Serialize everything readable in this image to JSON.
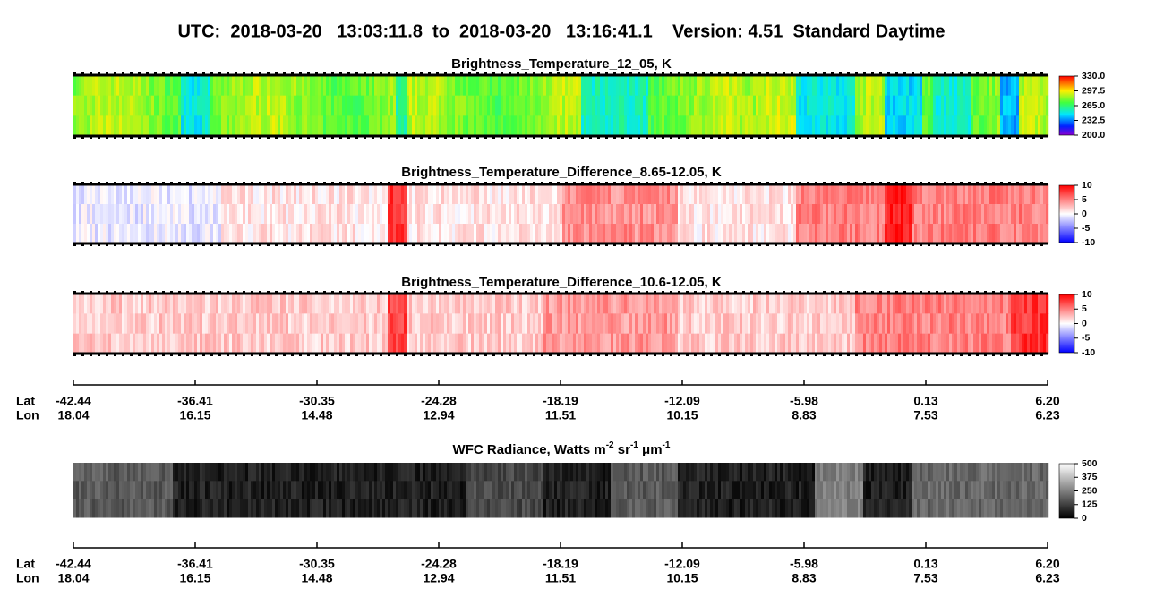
{
  "header": {
    "title": "UTC:  2018-03-20   13:03:11.8  to  2018-03-20   13:16:41.1    Version: 4.51  Standard Daytime"
  },
  "panels": [
    {
      "title": "Brightness_Temperature_12_05, K",
      "range": [
        200,
        330
      ],
      "ticks": [
        {
          "value": 330,
          "label": "330.0"
        },
        {
          "value": 297.5,
          "label": "297.5"
        },
        {
          "value": 265,
          "label": "265.0"
        },
        {
          "value": 232.5,
          "label": "232.5"
        },
        {
          "value": 200,
          "label": "200.0"
        }
      ]
    },
    {
      "title": "Brightness_Temperature_Difference_8.65-12.05, K",
      "range": [
        -10,
        10
      ],
      "ticks": [
        10,
        5,
        0,
        -5,
        -10
      ]
    },
    {
      "title": "Brightness_Temperature_Difference_10.6-12.05, K",
      "range": [
        -10,
        10
      ],
      "ticks": [
        10,
        5,
        0,
        -5,
        -10
      ]
    },
    {
      "title": [
        "WFC Radiance, Watts m",
        "-2",
        " sr",
        "-1",
        " μm",
        "-1"
      ],
      "range": [
        0,
        500
      ],
      "ticks": [
        500,
        375,
        250,
        125,
        0
      ]
    }
  ],
  "axis": {
    "lat_label": "Lat",
    "lon_label": "Lon",
    "lat": [
      "-42.44",
      "-36.41",
      "-30.35",
      "-24.28",
      "-18.19",
      "-12.09",
      "-5.98",
      "0.13",
      "6.20"
    ],
    "lon": [
      "18.04",
      "16.15",
      "14.48",
      "12.94",
      "11.51",
      "10.15",
      "8.83",
      "7.53",
      "6.23"
    ]
  }
}
